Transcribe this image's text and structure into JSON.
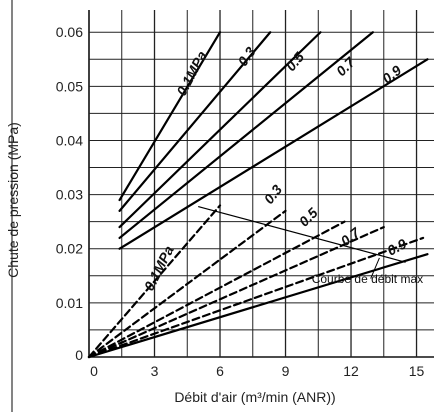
{
  "chart_data": {
    "type": "line",
    "xlabel": "Débit d'air (m³/min (ANR))",
    "ylabel": "Chute de pression (MPa)",
    "xlim": [
      0,
      15.8
    ],
    "ylim": [
      0,
      0.063
    ],
    "xticks": [
      0,
      3,
      6,
      9,
      12,
      15
    ],
    "xtick_labels": [
      "0",
      "3",
      "6",
      "9",
      "12",
      "15"
    ],
    "yticks": [
      0,
      0.01,
      0.02,
      0.03,
      0.04,
      0.05,
      0.06
    ],
    "ytick_labels": [
      "0",
      "0.01",
      "0.02",
      "0.03",
      "0.04",
      "0.05",
      "0.06"
    ],
    "grid": true,
    "series": [
      {
        "name": "0.1MPa",
        "style": "solid",
        "x": [
          1.4,
          6.0
        ],
        "y": [
          0.029,
          0.06
        ]
      },
      {
        "name": "0.3",
        "style": "solid",
        "x": [
          1.4,
          8.3
        ],
        "y": [
          0.027,
          0.06
        ]
      },
      {
        "name": "0.5",
        "style": "solid",
        "x": [
          1.4,
          10.6
        ],
        "y": [
          0.024,
          0.06
        ]
      },
      {
        "name": "0.7",
        "style": "solid",
        "x": [
          1.4,
          13.0
        ],
        "y": [
          0.022,
          0.06
        ]
      },
      {
        "name": "0.9",
        "style": "solid",
        "x": [
          1.4,
          15.5
        ],
        "y": [
          0.02,
          0.055
        ]
      },
      {
        "name": "0.1MPa",
        "style": "dashed",
        "x": [
          0,
          6.0
        ],
        "y": [
          0,
          0.028
        ]
      },
      {
        "name": "0.3",
        "style": "dashed",
        "x": [
          0,
          9.0
        ],
        "y": [
          0,
          0.027
        ]
      },
      {
        "name": "0.5",
        "style": "dashed",
        "x": [
          0,
          11.7
        ],
        "y": [
          0,
          0.025
        ]
      },
      {
        "name": "0.7",
        "style": "dashed",
        "x": [
          0,
          13.5
        ],
        "y": [
          0,
          0.024
        ]
      },
      {
        "name": "0.9",
        "style": "dashed",
        "x": [
          0,
          15.3
        ],
        "y": [
          0,
          0.022
        ]
      },
      {
        "name": "0.9",
        "style": "solid",
        "x": [
          0,
          15.5
        ],
        "y": [
          0,
          0.019
        ]
      }
    ],
    "annotations": [
      {
        "text": "Courbe de débit max",
        "line_x": [
          5.0,
          14.5
        ],
        "line_y": [
          0.0278,
          0.0175
        ]
      }
    ],
    "labels": [
      {
        "text": "0.1MPa",
        "x": 4.9,
        "y": 0.052,
        "angle": -62
      },
      {
        "text": "0.3",
        "x": 7.4,
        "y": 0.055,
        "angle": -55
      },
      {
        "text": "0.5",
        "x": 9.6,
        "y": 0.054,
        "angle": -50
      },
      {
        "text": "0.7",
        "x": 11.9,
        "y": 0.053,
        "angle": -45
      },
      {
        "text": "0.9",
        "x": 14.0,
        "y": 0.0515,
        "angle": -38
      },
      {
        "text": "0.1MPa",
        "x": 3.4,
        "y": 0.016,
        "angle": -63
      },
      {
        "text": "0.3",
        "x": 8.6,
        "y": 0.0295,
        "angle": -52
      },
      {
        "text": "0.5",
        "x": 10.2,
        "y": 0.0252,
        "angle": -45
      },
      {
        "text": "0.7",
        "x": 12.1,
        "y": 0.0215,
        "angle": -38
      },
      {
        "text": "0.9",
        "x": 14.2,
        "y": 0.0195,
        "angle": -28
      }
    ]
  }
}
